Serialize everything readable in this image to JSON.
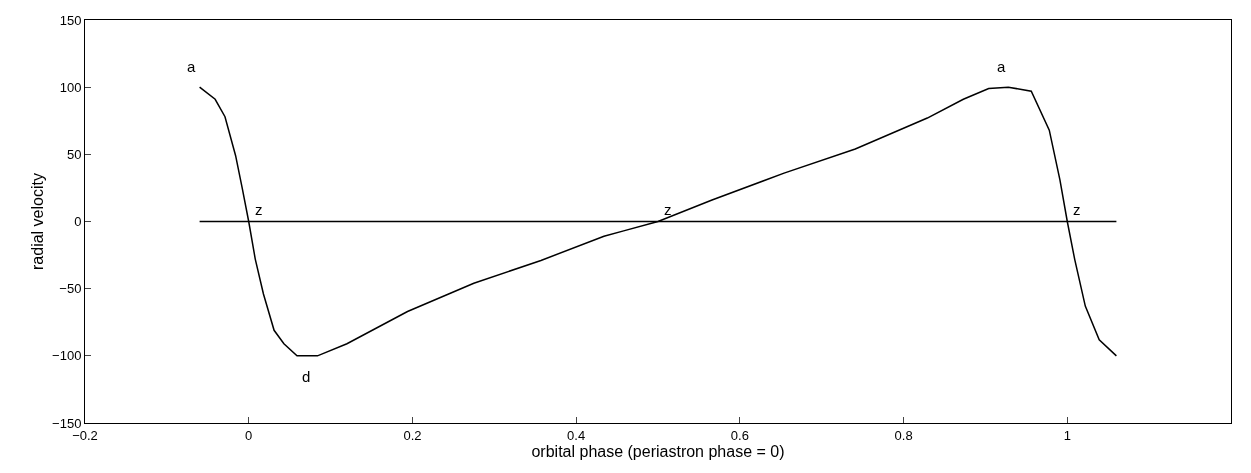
{
  "chart_data": {
    "type": "line",
    "xlabel": "orbital phase (periastron phase = 0)",
    "ylabel": "radial velocity",
    "xlim": [
      -0.2,
      1.2
    ],
    "xticks": [
      -0.2,
      0,
      0.2,
      0.4,
      0.6,
      0.8,
      1
    ],
    "ylim": [
      -150,
      150
    ],
    "yticks": [
      -150,
      -100,
      -50,
      0,
      50,
      100,
      150
    ],
    "marker": "none",
    "line_style": "solid",
    "series": [
      {
        "color": "#000000",
        "x": [
          -0.06,
          -0.041,
          -0.029,
          -0.016,
          -0.008,
          0,
          0.008,
          0.018,
          0.031,
          0.043,
          0.059,
          0.084,
          0.12,
          0.194,
          0.275,
          0.357,
          0.434,
          0.458,
          0.5,
          0.566,
          0.654,
          0.741,
          0.829,
          0.873,
          0.904,
          0.928,
          0.956,
          0.978,
          0.991,
          1.0,
          1.009,
          1.022,
          1.039,
          1.06
        ],
        "values": [
          100,
          91,
          78,
          49,
          25,
          0,
          -28,
          -54,
          -81,
          -91,
          -100,
          -100,
          -91,
          -67,
          -46,
          -29,
          -11,
          -7,
          0,
          16,
          36,
          54,
          77,
          91,
          99,
          100,
          97,
          68,
          31,
          0,
          -28,
          -63,
          -88,
          -100
        ]
      },
      {
        "color": "#000000",
        "x": [
          -0.06,
          1.06
        ],
        "values": [
          0,
          0
        ]
      }
    ],
    "annotations": [
      {
        "text": "a",
        "x": -0.06,
        "y": 100
      },
      {
        "text": "z",
        "x": 0,
        "y": 0
      },
      {
        "text": "d",
        "x": 0.07,
        "y": -100
      },
      {
        "text": "z",
        "x": 0.5,
        "y": 0
      },
      {
        "text": "a",
        "x": 0.93,
        "y": 100
      },
      {
        "text": "z",
        "x": 1,
        "y": 0
      }
    ]
  }
}
